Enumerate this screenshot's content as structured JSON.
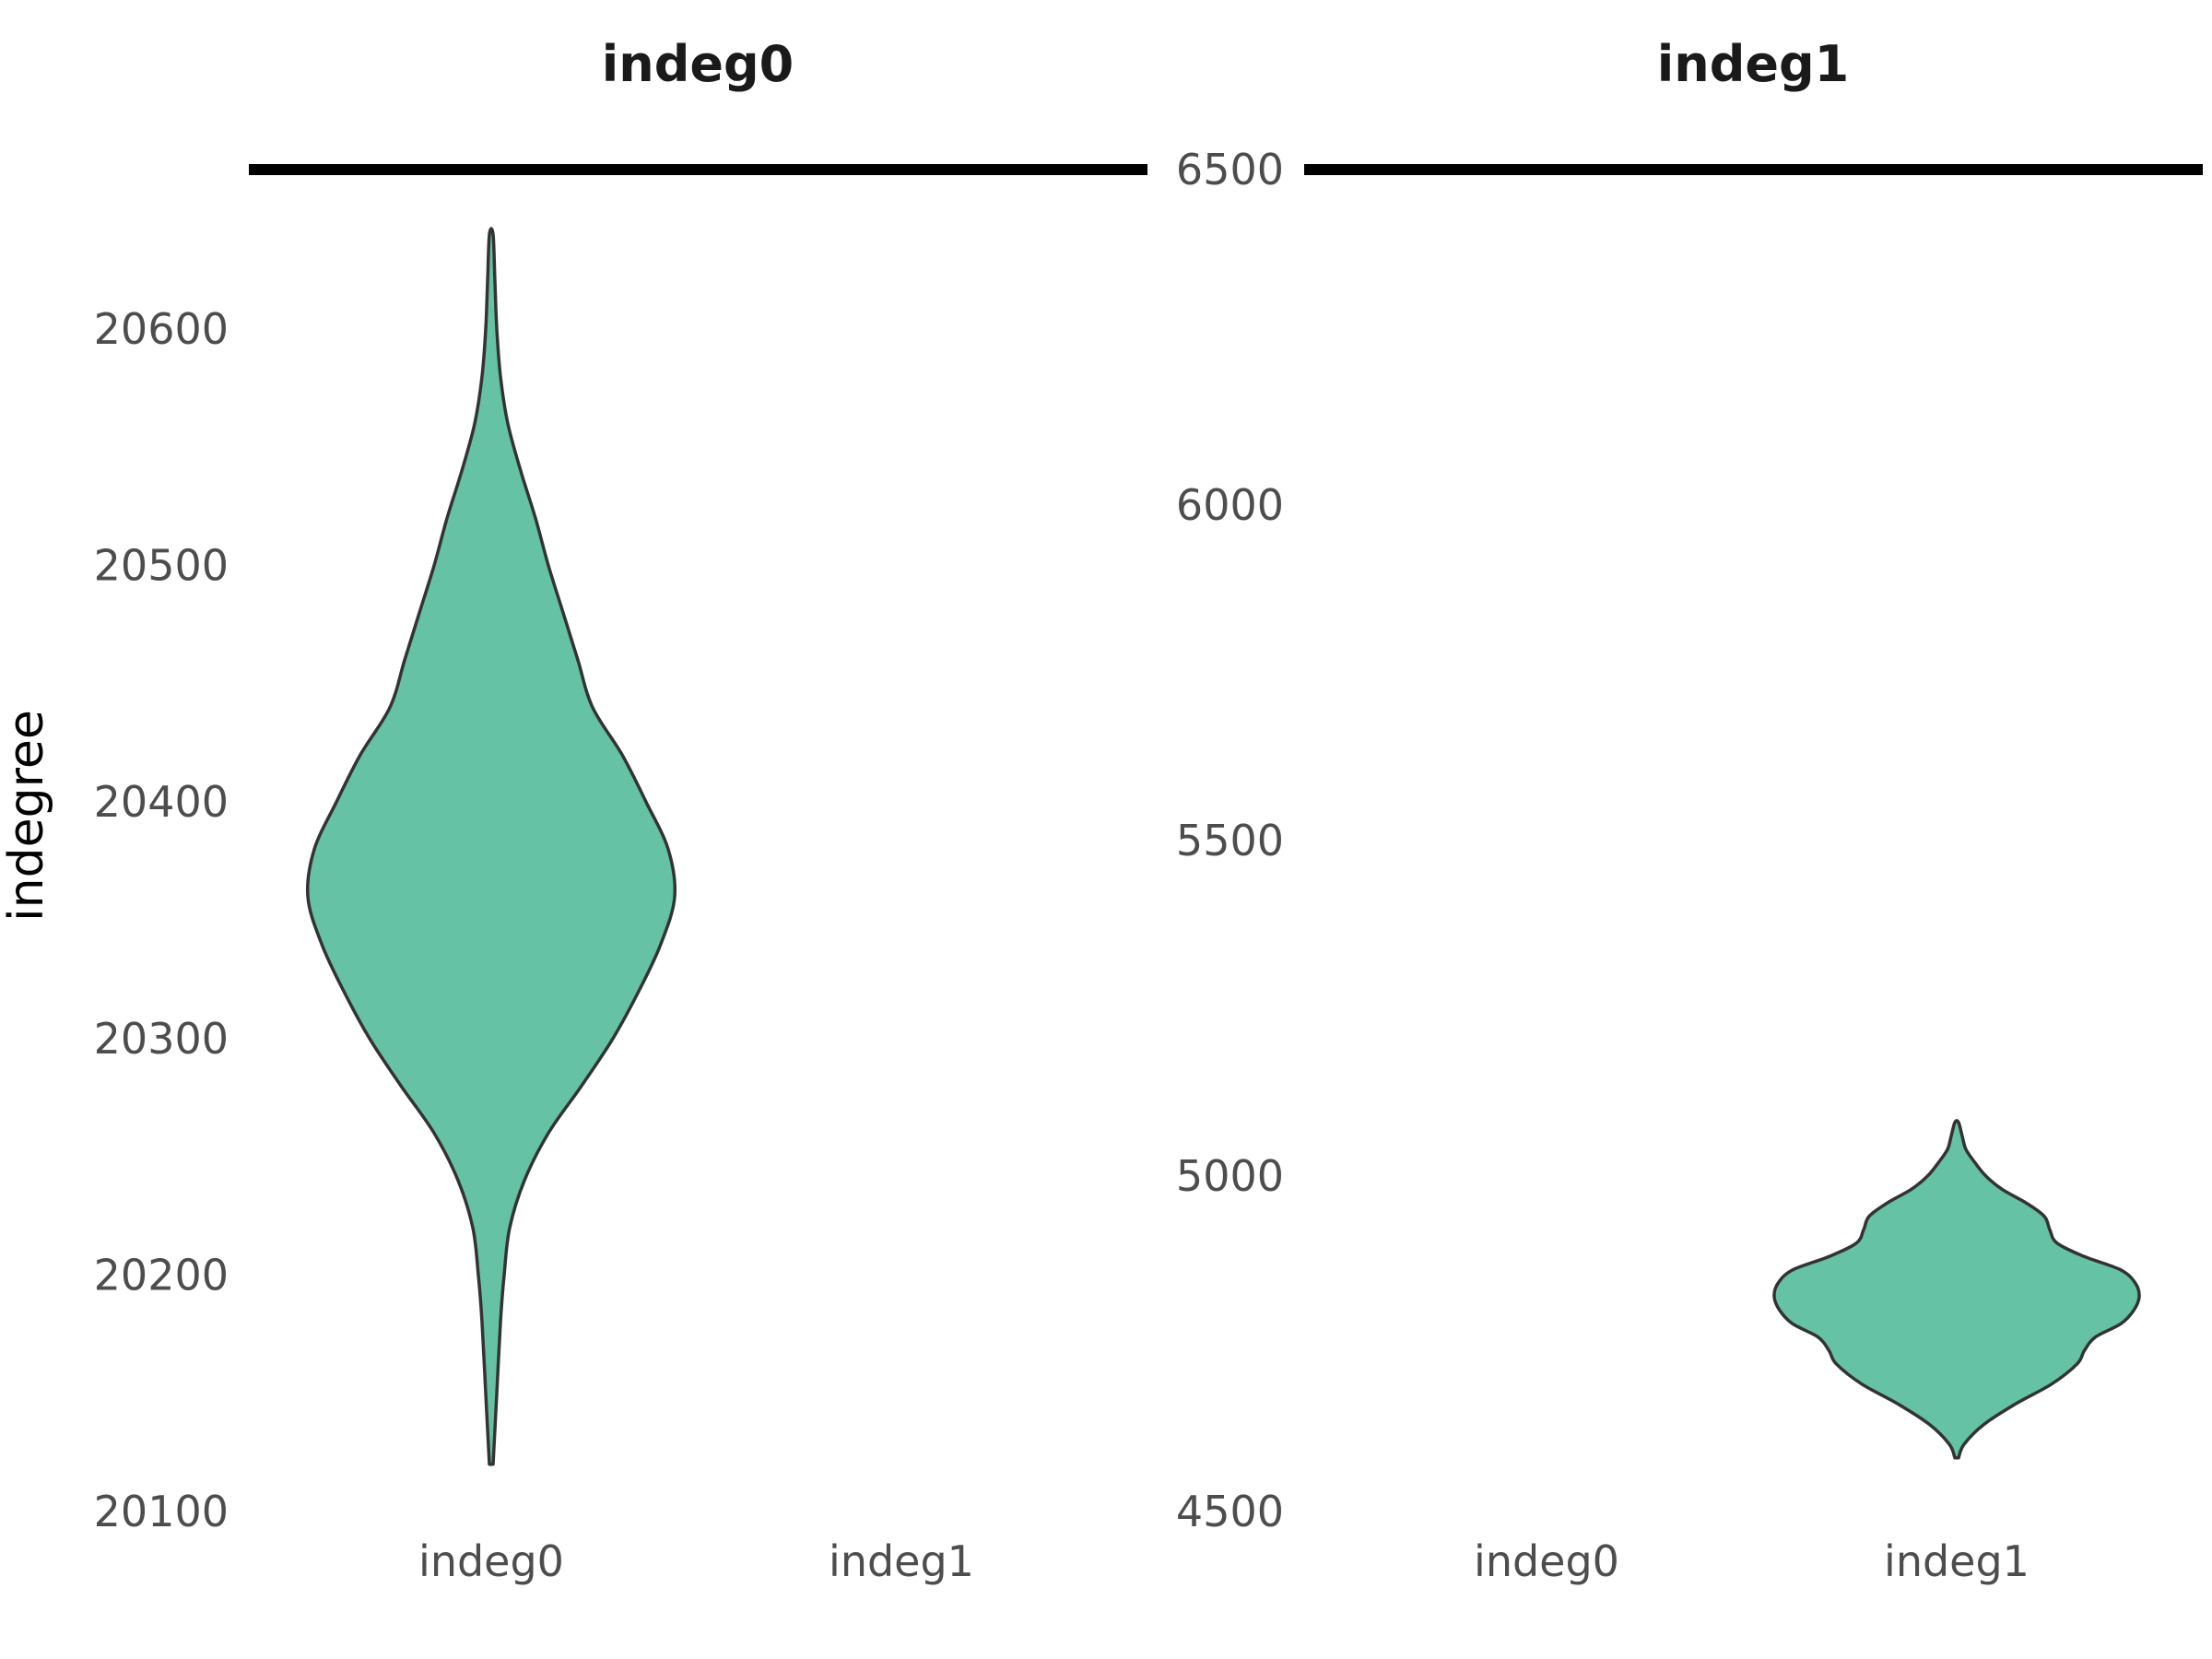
{
  "chart_data": {
    "type": "violin",
    "ylabel": "indegree",
    "fill_color": "#66c2a5",
    "outline_color": "#333333",
    "grid": false,
    "facets": [
      {
        "title": "indeg0",
        "categories": [
          "indeg0",
          "indeg1"
        ],
        "ylim": [
          20100,
          20660
        ],
        "yticks": [
          20100,
          20200,
          20300,
          20400,
          20500,
          20600
        ],
        "ytick_labels": [
          "20100",
          "20200",
          "20300",
          "20400",
          "20500",
          "20600"
        ],
        "violin": {
          "category": "indeg0",
          "min": 20120,
          "max": 20640,
          "density_profile": [
            [
              20120,
              0.01
            ],
            [
              20150,
              0.03
            ],
            [
              20180,
              0.05
            ],
            [
              20200,
              0.07
            ],
            [
              20220,
              0.1
            ],
            [
              20240,
              0.18
            ],
            [
              20260,
              0.31
            ],
            [
              20280,
              0.49
            ],
            [
              20300,
              0.66
            ],
            [
              20320,
              0.8
            ],
            [
              20340,
              0.92
            ],
            [
              20360,
              0.995
            ],
            [
              20380,
              0.96
            ],
            [
              20400,
              0.84
            ],
            [
              20420,
              0.71
            ],
            [
              20440,
              0.55
            ],
            [
              20460,
              0.47
            ],
            [
              20480,
              0.39
            ],
            [
              20500,
              0.31
            ],
            [
              20520,
              0.24
            ],
            [
              20540,
              0.16
            ],
            [
              20560,
              0.09
            ],
            [
              20580,
              0.05
            ],
            [
              20600,
              0.03
            ],
            [
              20620,
              0.02
            ],
            [
              20640,
              0.01
            ]
          ]
        }
      },
      {
        "title": "indeg1",
        "categories": [
          "indeg0",
          "indeg1"
        ],
        "ylim": [
          4500,
          6500
        ],
        "yticks": [
          4500,
          5000,
          5500,
          6000,
          6500
        ],
        "ytick_labels": [
          "4500",
          "5000",
          "5500",
          "6000",
          "6500"
        ],
        "violin": {
          "category": "indeg1",
          "min": 4580,
          "max": 5080,
          "density_profile": [
            [
              4580,
              0.01
            ],
            [
              4600,
              0.04
            ],
            [
              4630,
              0.15
            ],
            [
              4660,
              0.32
            ],
            [
              4690,
              0.52
            ],
            [
              4720,
              0.66
            ],
            [
              4740,
              0.7
            ],
            [
              4760,
              0.76
            ],
            [
              4780,
              0.9
            ],
            [
              4800,
              0.97
            ],
            [
              4820,
              1.0
            ],
            [
              4840,
              0.98
            ],
            [
              4860,
              0.9
            ],
            [
              4880,
              0.7
            ],
            [
              4900,
              0.55
            ],
            [
              4920,
              0.51
            ],
            [
              4940,
              0.48
            ],
            [
              4960,
              0.38
            ],
            [
              4980,
              0.25
            ],
            [
              5000,
              0.16
            ],
            [
              5020,
              0.1
            ],
            [
              5040,
              0.05
            ],
            [
              5060,
              0.03
            ],
            [
              5080,
              0.01
            ]
          ]
        }
      }
    ]
  }
}
